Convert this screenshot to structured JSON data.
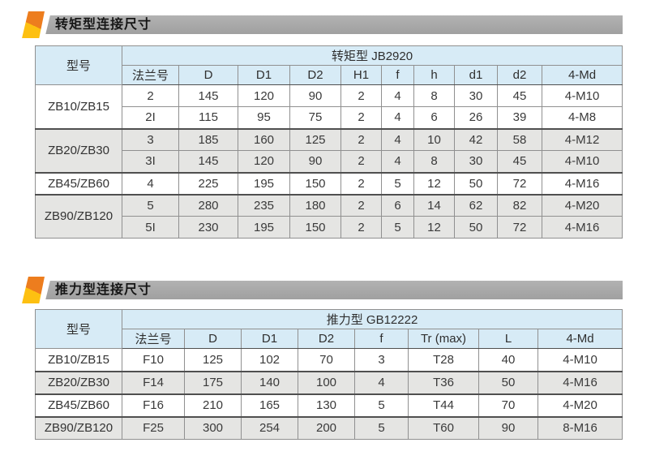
{
  "colors": {
    "header_bg": "#d7ebf6",
    "row_alt_bg": "#e5e5e3",
    "bar_bg": "#a0a0a0",
    "bar_bg_light": "#b2b2b2",
    "marker_orange": "#ed7d1e",
    "marker_yellow": "#fdc011",
    "border": "#909090",
    "border_dark": "#4f4f4f"
  },
  "sections": [
    {
      "title": "转矩型连接尺寸",
      "table": {
        "model_header": "型号",
        "standard_header": "转矩型 JB2920",
        "columns": [
          "法兰号",
          "D",
          "D1",
          "D2",
          "H1",
          "f",
          "h",
          "d1",
          "d2",
          "4-Md"
        ],
        "groups": [
          {
            "model": "ZB10/ZB15",
            "rows": [
              [
                "2",
                "145",
                "120",
                "90",
                "2",
                "4",
                "8",
                "30",
                "45",
                "4-M10"
              ],
              [
                "2I",
                "115",
                "95",
                "75",
                "2",
                "4",
                "6",
                "26",
                "39",
                "4-M8"
              ]
            ]
          },
          {
            "model": "ZB20/ZB30",
            "rows": [
              [
                "3",
                "185",
                "160",
                "125",
                "2",
                "4",
                "10",
                "42",
                "58",
                "4-M12"
              ],
              [
                "3I",
                "145",
                "120",
                "90",
                "2",
                "4",
                "8",
                "30",
                "45",
                "4-M10"
              ]
            ]
          },
          {
            "model": "ZB45/ZB60",
            "rows": [
              [
                "4",
                "225",
                "195",
                "150",
                "2",
                "5",
                "12",
                "50",
                "72",
                "4-M16"
              ]
            ]
          },
          {
            "model": "ZB90/ZB120",
            "rows": [
              [
                "5",
                "280",
                "235",
                "180",
                "2",
                "6",
                "14",
                "62",
                "82",
                "4-M20"
              ],
              [
                "5I",
                "230",
                "195",
                "150",
                "2",
                "5",
                "12",
                "50",
                "72",
                "4-M16"
              ]
            ]
          }
        ]
      }
    },
    {
      "title": "推力型连接尺寸",
      "table": {
        "model_header": "型号",
        "standard_header": "推力型 GB12222",
        "columns": [
          "法兰号",
          "D",
          "D1",
          "D2",
          "f",
          "Tr (max)",
          "L",
          "4-Md"
        ],
        "groups": [
          {
            "model": "ZB10/ZB15",
            "rows": [
              [
                "F10",
                "125",
                "102",
                "70",
                "3",
                "T28",
                "40",
                "4-M10"
              ]
            ]
          },
          {
            "model": "ZB20/ZB30",
            "rows": [
              [
                "F14",
                "175",
                "140",
                "100",
                "4",
                "T36",
                "50",
                "4-M16"
              ]
            ]
          },
          {
            "model": "ZB45/ZB60",
            "rows": [
              [
                "F16",
                "210",
                "165",
                "130",
                "5",
                "T44",
                "70",
                "4-M20"
              ]
            ]
          },
          {
            "model": "ZB90/ZB120",
            "rows": [
              [
                "F25",
                "300",
                "254",
                "200",
                "5",
                "T60",
                "90",
                "8-M16"
              ]
            ]
          }
        ]
      }
    }
  ]
}
